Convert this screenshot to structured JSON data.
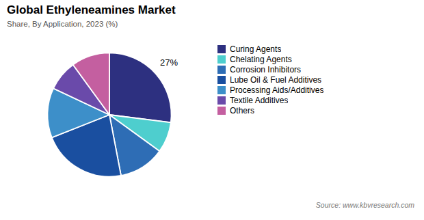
{
  "chart_data": {
    "type": "pie",
    "title": "Global Ethyleneamines Market",
    "subtitle": "Share, By Application, 2023 (%)",
    "source": "Source: www.kbvresearch.com",
    "categories": [
      "Curing Agents",
      "Chelating Agents",
      "Corrosion Inhibitors",
      "Lube Oil & Fuel Additives",
      "Processing Aids/Additives",
      "Textile Additives",
      "Others"
    ],
    "values": [
      27,
      8,
      12,
      22,
      13,
      8,
      10
    ],
    "colors": [
      "#2d3080",
      "#4ecece",
      "#2e6db5",
      "#1a4fa0",
      "#3d8fc9",
      "#6a4aaa",
      "#c45fa0"
    ],
    "annotations": [
      {
        "text": "27%",
        "category": "Curing Agents"
      }
    ],
    "legend": "right"
  }
}
